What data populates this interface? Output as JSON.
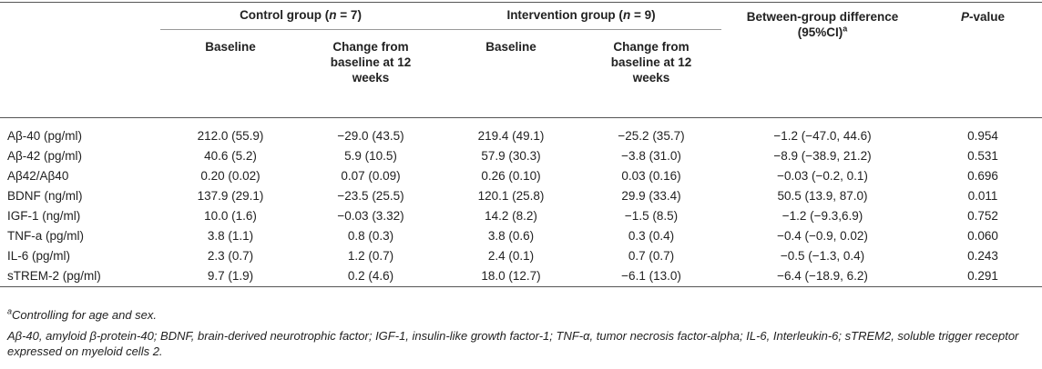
{
  "header": {
    "control_group": "Control group (",
    "control_n": "n",
    "control_eq": " = 7)",
    "intervention_group": "Intervention group (",
    "intervention_n": "n",
    "intervention_eq": " = 9)",
    "between_group": "Between-group difference (95%CI)",
    "between_sup": "a",
    "p_value_p": "P",
    "p_value_rest": "-value",
    "baseline": "Baseline",
    "change": "Change from baseline at 12 weeks"
  },
  "rows": [
    {
      "label": "Aβ-40 (pg/ml)",
      "c_base": "212.0 (55.9)",
      "c_change": "−29.0 (43.5)",
      "i_base": "219.4 (49.1)",
      "i_change": "−25.2 (35.7)",
      "diff": "−1.2 (−47.0, 44.6)",
      "p": "0.954"
    },
    {
      "label": "Aβ-42 (pg/ml)",
      "c_base": "40.6 (5.2)",
      "c_change": "5.9 (10.5)",
      "i_base": "57.9 (30.3)",
      "i_change": "−3.8 (31.0)",
      "diff": "−8.9 (−38.9, 21.2)",
      "p": "0.531"
    },
    {
      "label": "Aβ42/Aβ40",
      "c_base": "0.20 (0.02)",
      "c_change": "0.07 (0.09)",
      "i_base": "0.26 (0.10)",
      "i_change": "0.03 (0.16)",
      "diff": "−0.03 (−0.2, 0.1)",
      "p": "0.696"
    },
    {
      "label": "BDNF (ng/ml)",
      "c_base": "137.9 (29.1)",
      "c_change": "−23.5 (25.5)",
      "i_base": "120.1 (25.8)",
      "i_change": "29.9 (33.4)",
      "diff": "50.5 (13.9, 87.0)",
      "p": "0.011"
    },
    {
      "label": "IGF-1 (ng/ml)",
      "c_base": "10.0 (1.6)",
      "c_change": "−0.03 (3.32)",
      "i_base": "14.2 (8.2)",
      "i_change": "−1.5 (8.5)",
      "diff": "−1.2 (−9.3,6.9)",
      "p": "0.752"
    },
    {
      "label": "TNF-a (pg/ml)",
      "c_base": "3.8 (1.1)",
      "c_change": "0.8 (0.3)",
      "i_base": "3.8 (0.6)",
      "i_change": "0.3 (0.4)",
      "diff": "−0.4 (−0.9, 0.02)",
      "p": "0.060"
    },
    {
      "label": "IL-6 (pg/ml)",
      "c_base": "2.3 (0.7)",
      "c_change": "1.2 (0.7)",
      "i_base": "2.4 (0.1)",
      "i_change": "0.7 (0.7)",
      "diff": "−0.5 (−1.3, 0.4)",
      "p": "0.243"
    },
    {
      "label": "sTREM-2 (pg/ml)",
      "c_base": "9.7 (1.9)",
      "c_change": "0.2 (4.6)",
      "i_base": "18.0 (12.7)",
      "i_change": "−6.1 (13.0)",
      "diff": "−6.4 (−18.9, 6.2)",
      "p": "0.291"
    }
  ],
  "footnotes": {
    "sup": "a",
    "note_a": "Controlling for age and sex.",
    "abbrev": "Aβ-40, amyloid β-protein-40; BDNF, brain-derived neurotrophic factor; IGF-1, insulin-like growth factor-1; TNF-α, tumor necrosis factor-alpha; IL-6, Interleukin-6; sTREM2, soluble trigger receptor expressed on myeloid cells 2."
  }
}
